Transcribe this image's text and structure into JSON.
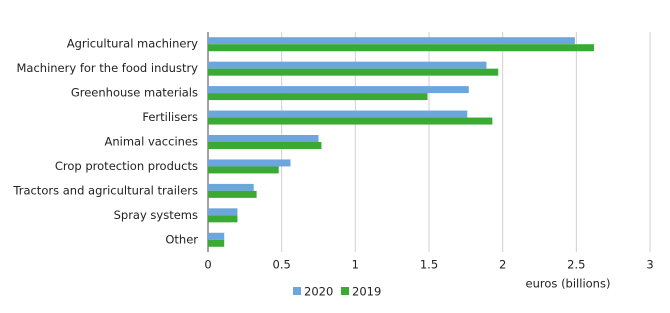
{
  "chart_data": {
    "type": "hbar",
    "x_label": "euros (billions)",
    "categories": [
      "Agricultural machinery",
      "Machinery for the food industry",
      "Greenhouse materials",
      "Fertilisers",
      "Animal vaccines",
      "Crop protection products",
      "Tractors and agricultural trailers",
      "Spray systems",
      "Other"
    ],
    "series": [
      {
        "name": "2020",
        "color": "#6ca6dc",
        "values": [
          2.49,
          1.89,
          1.77,
          1.76,
          0.75,
          0.56,
          0.31,
          0.2,
          0.11
        ]
      },
      {
        "name": "2019",
        "color": "#3aaa35",
        "values": [
          2.62,
          1.97,
          1.49,
          1.93,
          0.77,
          0.48,
          0.33,
          0.2,
          0.11
        ]
      }
    ],
    "xlim": [
      0,
      3
    ],
    "xticks": [
      0,
      0.5,
      1,
      1.5,
      2,
      2.5,
      3
    ],
    "grid": true,
    "legend": "bottom"
  }
}
